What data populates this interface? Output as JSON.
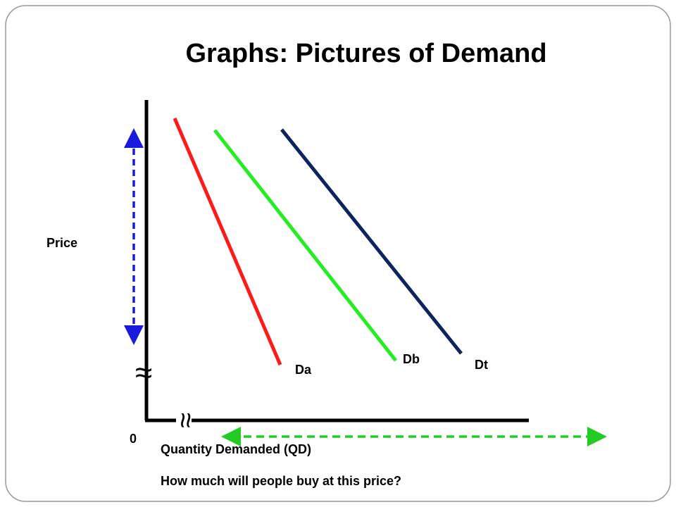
{
  "title": "Graphs:  Pictures of Demand",
  "axes": {
    "y_label": "Price",
    "x_label": "Quantity Demanded (QD)",
    "origin": "0"
  },
  "curves": [
    {
      "label": "Da"
    },
    {
      "label": "Db"
    },
    {
      "label": "Dt"
    }
  ],
  "question": "How much will people buy at this price?"
}
